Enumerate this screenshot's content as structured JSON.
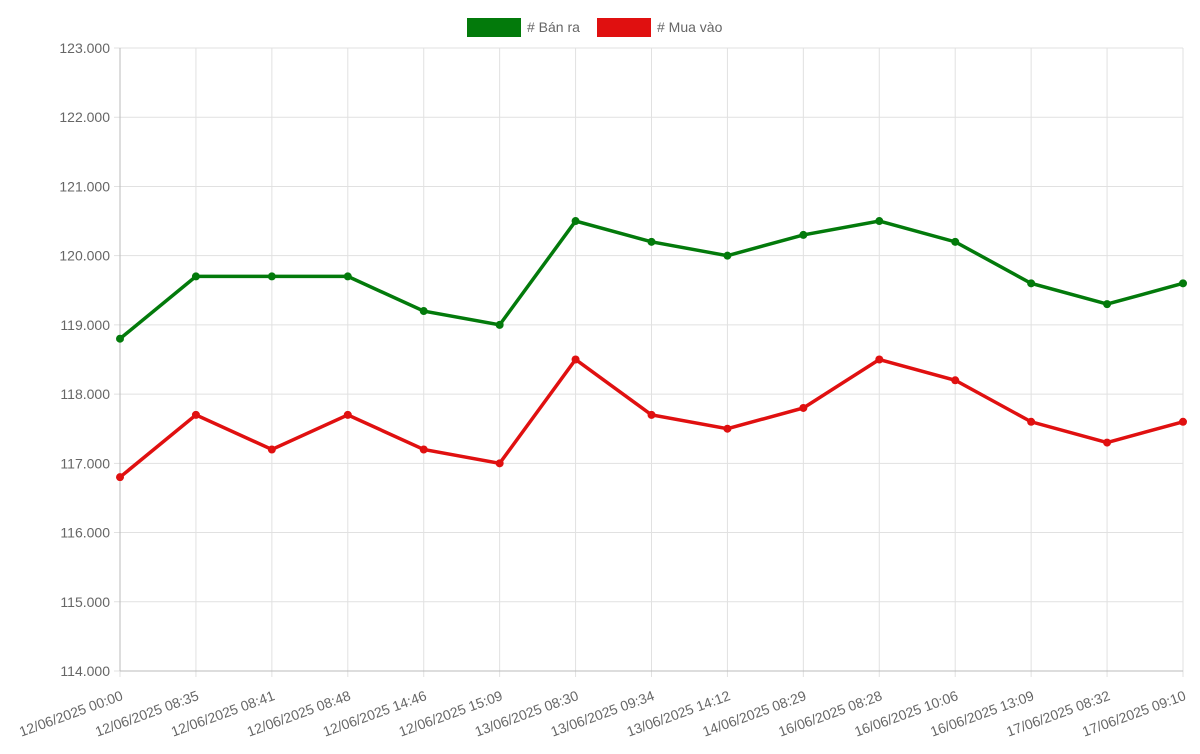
{
  "chart_data": {
    "type": "line",
    "categories": [
      "12/06/2025 00:00",
      "12/06/2025 08:35",
      "12/06/2025 08:41",
      "12/06/2025 08:48",
      "12/06/2025 14:46",
      "12/06/2025 15:09",
      "13/06/2025 08:30",
      "13/06/2025 09:34",
      "13/06/2025 14:12",
      "14/06/2025 08:29",
      "16/06/2025 08:28",
      "16/06/2025 10:06",
      "16/06/2025 13:09",
      "17/06/2025 08:32",
      "17/06/2025 09:10"
    ],
    "series": [
      {
        "name": "# Bán ra",
        "color": "#037a0b",
        "values": [
          118800,
          119700,
          119700,
          119700,
          119200,
          119000,
          120500,
          120200,
          120000,
          120300,
          120500,
          120200,
          119600,
          119300,
          119600
        ]
      },
      {
        "name": "# Mua vào",
        "color": "#e01010",
        "values": [
          116800,
          117700,
          117200,
          117700,
          117200,
          117000,
          118500,
          117700,
          117500,
          117800,
          118500,
          118200,
          117600,
          117300,
          117600
        ]
      }
    ],
    "ylim": [
      114000,
      123000
    ],
    "yticks": [
      {
        "value": 114000,
        "label": "114.000"
      },
      {
        "value": 115000,
        "label": "115.000"
      },
      {
        "value": 116000,
        "label": "116.000"
      },
      {
        "value": 117000,
        "label": "117.000"
      },
      {
        "value": 118000,
        "label": "118.000"
      },
      {
        "value": 119000,
        "label": "119.000"
      },
      {
        "value": 120000,
        "label": "120.000"
      },
      {
        "value": 121000,
        "label": "121.000"
      },
      {
        "value": 122000,
        "label": "122.000"
      },
      {
        "value": 123000,
        "label": "123.000"
      }
    ],
    "grid": true,
    "legend": "top"
  }
}
